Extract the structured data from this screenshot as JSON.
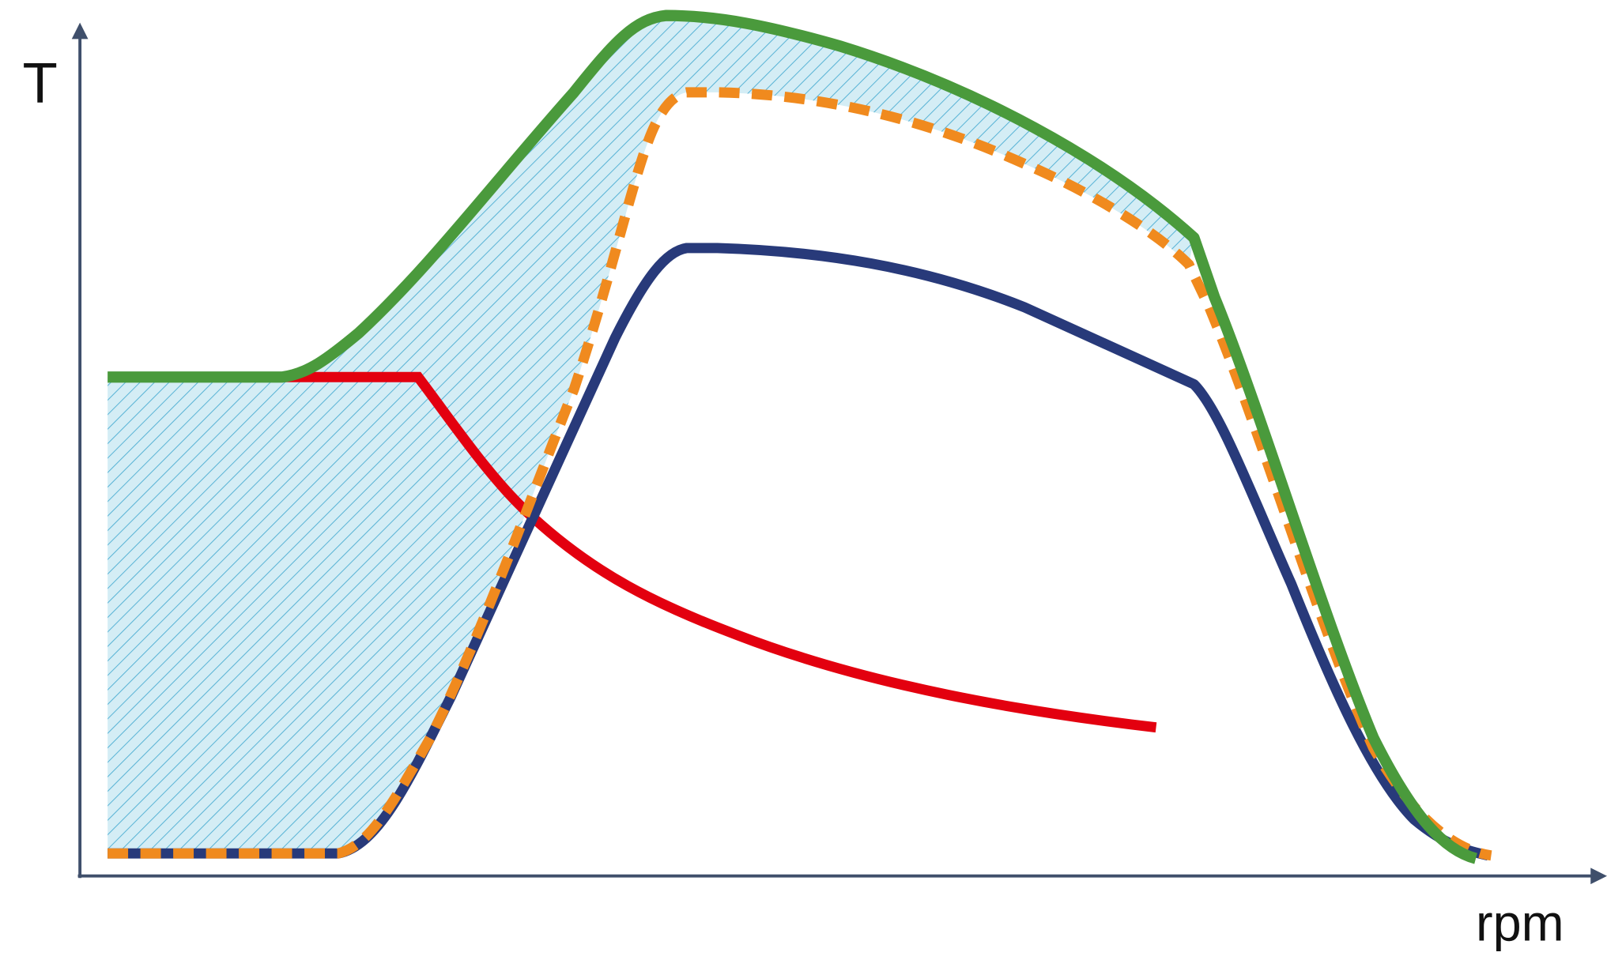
{
  "axes": {
    "y_label": "T",
    "x_label": "rpm"
  }
}
